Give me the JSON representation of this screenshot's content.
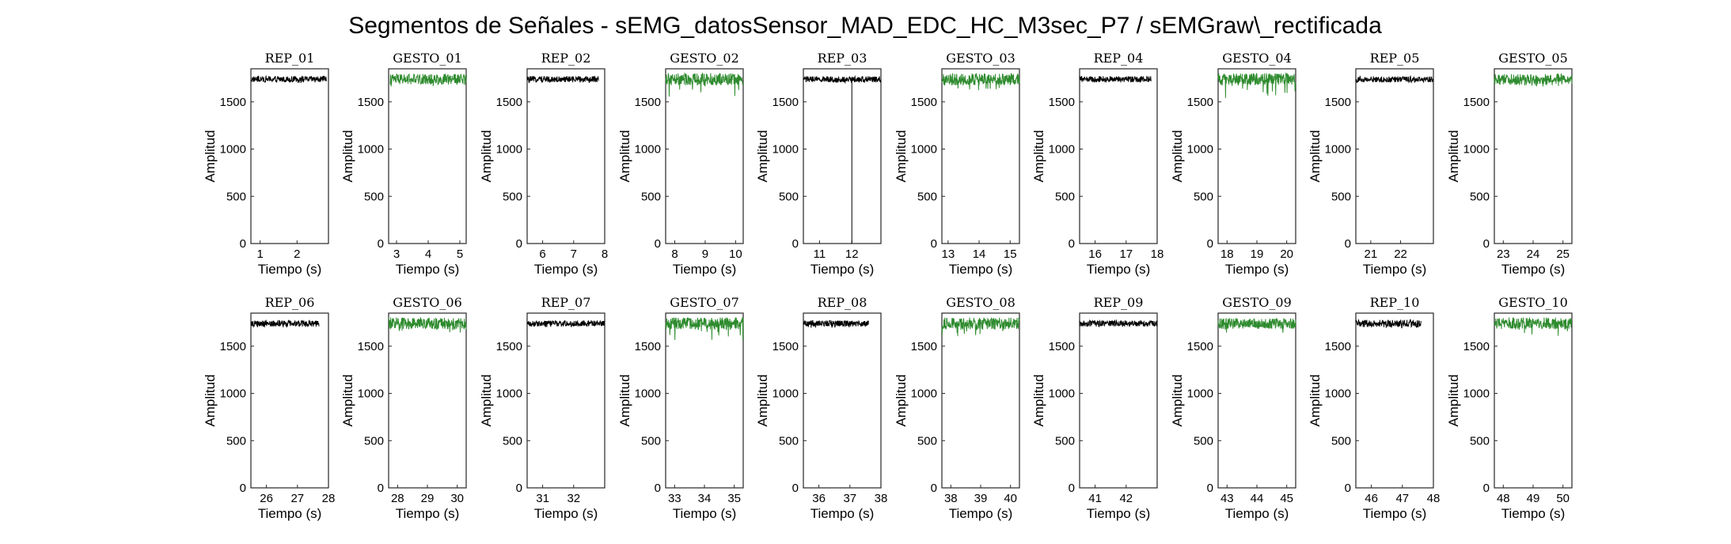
{
  "figure": {
    "suptitle": "Segmentos de Señales - sEMG_datosSensor_MAD_EDC_HC_M3sec_P7 / sEMGraw\\_rectificada"
  },
  "colors": {
    "rep": "#000000",
    "gesto": "#2e8b2e",
    "axis": "#262626"
  },
  "chart_data": [
    {
      "type": "line",
      "title": "REP_01",
      "xlabel": "Tiempo (s)",
      "ylabel": "Amplitud",
      "xlim": [
        0.75,
        2.85
      ],
      "ylim": [
        0,
        1850
      ],
      "xticks": [
        1,
        2
      ],
      "yticks": [
        0,
        500,
        1000,
        1500
      ],
      "series": [
        {
          "x": [
            0.75,
            2.8
          ],
          "y_mean": 1740,
          "y_spread": [
            1700,
            1780
          ]
        }
      ]
    },
    {
      "type": "line",
      "title": "GESTO_01",
      "xlabel": "Tiempo (s)",
      "ylabel": "Amplitud",
      "xlim": [
        2.75,
        5.2
      ],
      "ylim": [
        0,
        1850
      ],
      "xticks": [
        3,
        4,
        5
      ],
      "yticks": [
        0,
        500,
        1000,
        1500
      ],
      "series": [
        {
          "x": [
            2.8,
            5.2
          ],
          "y_mean": 1740,
          "y_spread": [
            1660,
            1810
          ]
        }
      ]
    },
    {
      "type": "line",
      "title": "REP_02",
      "xlabel": "Tiempo (s)",
      "ylabel": "Amplitud",
      "xlim": [
        5.5,
        8
      ],
      "ylim": [
        0,
        1850
      ],
      "xticks": [
        6,
        7,
        8
      ],
      "yticks": [
        0,
        500,
        1000,
        1500
      ],
      "series": [
        {
          "x": [
            5.5,
            7.8
          ],
          "y_mean": 1740,
          "y_spread": [
            1700,
            1780
          ]
        }
      ]
    },
    {
      "type": "line",
      "title": "GESTO_02",
      "xlabel": "Tiempo (s)",
      "ylabel": "Amplitud",
      "xlim": [
        7.7,
        10.25
      ],
      "ylim": [
        0,
        1850
      ],
      "xticks": [
        8,
        9,
        10
      ],
      "yticks": [
        0,
        500,
        1000,
        1500
      ],
      "series": [
        {
          "x": [
            7.7,
            10.25
          ],
          "y_mean": 1740,
          "y_spread": [
            1550,
            1820
          ]
        }
      ]
    },
    {
      "type": "line",
      "title": "REP_03",
      "xlabel": "Tiempo (s)",
      "ylabel": "Amplitud",
      "xlim": [
        10.5,
        12.9
      ],
      "ylim": [
        0,
        1850
      ],
      "xticks": [
        11,
        12
      ],
      "yticks": [
        0,
        500,
        1000,
        1500
      ],
      "series": [
        {
          "x": [
            10.5,
            12.9
          ],
          "y_mean": 1740,
          "y_spread": [
            1700,
            1780
          ],
          "dropout_x": 12,
          "dropout_y": 0
        }
      ]
    },
    {
      "type": "line",
      "title": "GESTO_03",
      "xlabel": "Tiempo (s)",
      "ylabel": "Amplitud",
      "xlim": [
        12.8,
        15.3
      ],
      "ylim": [
        0,
        1850
      ],
      "xticks": [
        13,
        14,
        15
      ],
      "yticks": [
        0,
        500,
        1000,
        1500
      ],
      "series": [
        {
          "x": [
            12.8,
            15.3
          ],
          "y_mean": 1740,
          "y_spread": [
            1600,
            1820
          ]
        }
      ]
    },
    {
      "type": "line",
      "title": "REP_04",
      "xlabel": "Tiempo (s)",
      "ylabel": "Amplitud",
      "xlim": [
        15.5,
        18
      ],
      "ylim": [
        0,
        1850
      ],
      "xticks": [
        16,
        17,
        18
      ],
      "yticks": [
        0,
        500,
        1000,
        1500
      ],
      "series": [
        {
          "x": [
            15.5,
            17.8
          ],
          "y_mean": 1740,
          "y_spread": [
            1700,
            1780
          ]
        }
      ]
    },
    {
      "type": "line",
      "title": "GESTO_04",
      "xlabel": "Tiempo (s)",
      "ylabel": "Amplitud",
      "xlim": [
        17.7,
        20.3
      ],
      "ylim": [
        0,
        1850
      ],
      "xticks": [
        18,
        19,
        20
      ],
      "yticks": [
        0,
        500,
        1000,
        1500
      ],
      "series": [
        {
          "x": [
            17.7,
            20.3
          ],
          "y_mean": 1740,
          "y_spread": [
            1540,
            1820
          ]
        }
      ]
    },
    {
      "type": "line",
      "title": "REP_05",
      "xlabel": "Tiempo (s)",
      "ylabel": "Amplitud",
      "xlim": [
        20.5,
        23.1
      ],
      "ylim": [
        0,
        1850
      ],
      "xticks": [
        21,
        22
      ],
      "yticks": [
        0,
        500,
        1000,
        1500
      ],
      "series": [
        {
          "x": [
            20.5,
            23.1
          ],
          "y_mean": 1740,
          "y_spread": [
            1700,
            1780
          ]
        }
      ]
    },
    {
      "type": "line",
      "title": "GESTO_05",
      "xlabel": "Tiempo (s)",
      "ylabel": "Amplitud",
      "xlim": [
        22.7,
        25.3
      ],
      "ylim": [
        0,
        1850
      ],
      "xticks": [
        23,
        24,
        25
      ],
      "yticks": [
        0,
        500,
        1000,
        1500
      ],
      "series": [
        {
          "x": [
            22.7,
            25.3
          ],
          "y_mean": 1740,
          "y_spread": [
            1660,
            1810
          ]
        }
      ]
    },
    {
      "type": "line",
      "title": "REP_06",
      "xlabel": "Tiempo (s)",
      "ylabel": "Amplitud",
      "xlim": [
        25.5,
        28
      ],
      "ylim": [
        0,
        1850
      ],
      "xticks": [
        26,
        27,
        28
      ],
      "yticks": [
        0,
        500,
        1000,
        1500
      ],
      "series": [
        {
          "x": [
            25.5,
            27.7
          ],
          "y_mean": 1740,
          "y_spread": [
            1690,
            1780
          ]
        }
      ]
    },
    {
      "type": "line",
      "title": "GESTO_06",
      "xlabel": "Tiempo (s)",
      "ylabel": "Amplitud",
      "xlim": [
        27.7,
        30.3
      ],
      "ylim": [
        0,
        1850
      ],
      "xticks": [
        28,
        29,
        30
      ],
      "yticks": [
        0,
        500,
        1000,
        1500
      ],
      "series": [
        {
          "x": [
            27.7,
            30.3
          ],
          "y_mean": 1740,
          "y_spread": [
            1640,
            1820
          ]
        }
      ]
    },
    {
      "type": "line",
      "title": "REP_07",
      "xlabel": "Tiempo (s)",
      "ylabel": "Amplitud",
      "xlim": [
        30.5,
        33
      ],
      "ylim": [
        0,
        1850
      ],
      "xticks": [
        31,
        32
      ],
      "yticks": [
        0,
        500,
        1000,
        1500
      ],
      "series": [
        {
          "x": [
            30.5,
            33
          ],
          "y_mean": 1740,
          "y_spread": [
            1700,
            1780
          ]
        }
      ]
    },
    {
      "type": "line",
      "title": "GESTO_07",
      "xlabel": "Tiempo (s)",
      "ylabel": "Amplitud",
      "xlim": [
        32.7,
        35.3
      ],
      "ylim": [
        0,
        1850
      ],
      "xticks": [
        33,
        34,
        35
      ],
      "yticks": [
        0,
        500,
        1000,
        1500
      ],
      "series": [
        {
          "x": [
            32.7,
            35.3
          ],
          "y_mean": 1740,
          "y_spread": [
            1560,
            1820
          ]
        }
      ]
    },
    {
      "type": "line",
      "title": "REP_08",
      "xlabel": "Tiempo (s)",
      "ylabel": "Amplitud",
      "xlim": [
        35.5,
        38
      ],
      "ylim": [
        0,
        1850
      ],
      "xticks": [
        36,
        37,
        38
      ],
      "yticks": [
        0,
        500,
        1000,
        1500
      ],
      "series": [
        {
          "x": [
            35.5,
            37.6
          ],
          "y_mean": 1740,
          "y_spread": [
            1690,
            1780
          ]
        }
      ]
    },
    {
      "type": "line",
      "title": "GESTO_08",
      "xlabel": "Tiempo (s)",
      "ylabel": "Amplitud",
      "xlim": [
        37.7,
        40.3
      ],
      "ylim": [
        0,
        1850
      ],
      "xticks": [
        38,
        39,
        40
      ],
      "yticks": [
        0,
        500,
        1000,
        1500
      ],
      "series": [
        {
          "x": [
            37.7,
            40.3
          ],
          "y_mean": 1740,
          "y_spread": [
            1600,
            1820
          ]
        }
      ]
    },
    {
      "type": "line",
      "title": "REP_09",
      "xlabel": "Tiempo (s)",
      "ylabel": "Amplitud",
      "xlim": [
        40.5,
        43
      ],
      "ylim": [
        0,
        1850
      ],
      "xticks": [
        41,
        42
      ],
      "yticks": [
        0,
        500,
        1000,
        1500
      ],
      "series": [
        {
          "x": [
            40.5,
            43
          ],
          "y_mean": 1740,
          "y_spread": [
            1700,
            1780
          ]
        }
      ]
    },
    {
      "type": "line",
      "title": "GESTO_09",
      "xlabel": "Tiempo (s)",
      "ylabel": "Amplitud",
      "xlim": [
        42.7,
        45.3
      ],
      "ylim": [
        0,
        1850
      ],
      "xticks": [
        43,
        44,
        45
      ],
      "yticks": [
        0,
        500,
        1000,
        1500
      ],
      "series": [
        {
          "x": [
            42.7,
            45.3
          ],
          "y_mean": 1740,
          "y_spread": [
            1640,
            1810
          ]
        }
      ]
    },
    {
      "type": "line",
      "title": "REP_10",
      "xlabel": "Tiempo (s)",
      "ylabel": "Amplitud",
      "xlim": [
        45.5,
        48
      ],
      "ylim": [
        0,
        1850
      ],
      "xticks": [
        46,
        47,
        48
      ],
      "yticks": [
        0,
        500,
        1000,
        1500
      ],
      "series": [
        {
          "x": [
            45.5,
            47.6
          ],
          "y_mean": 1740,
          "y_spread": [
            1690,
            1790
          ]
        }
      ]
    },
    {
      "type": "line",
      "title": "GESTO_10",
      "xlabel": "Tiempo (s)",
      "ylabel": "Amplitud",
      "xlim": [
        47.7,
        50.3
      ],
      "ylim": [
        0,
        1850
      ],
      "xticks": [
        48,
        49,
        50
      ],
      "yticks": [
        0,
        500,
        1000,
        1500
      ],
      "series": [
        {
          "x": [
            47.7,
            50.3
          ],
          "y_mean": 1740,
          "y_spread": [
            1600,
            1820
          ]
        }
      ]
    }
  ]
}
